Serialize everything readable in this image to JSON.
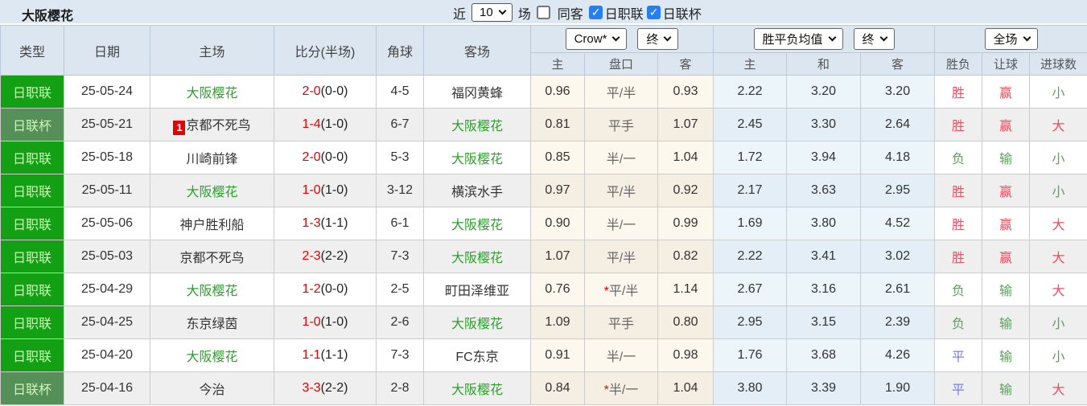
{
  "title": "大阪樱花",
  "controls": {
    "recent_label": "近",
    "recent_select": "10",
    "games_label": "场",
    "checkboxes": [
      {
        "label": "同客",
        "checked": false
      },
      {
        "label": "日职联",
        "checked": true
      },
      {
        "label": "日联杯",
        "checked": true
      }
    ]
  },
  "header": {
    "static": [
      "类型",
      "日期",
      "主场",
      "比分(半场)",
      "角球",
      "客场"
    ],
    "asian_selects": [
      "Crow*",
      "终"
    ],
    "asian_cols": [
      "主",
      "盘口",
      "客"
    ],
    "europe_selects": [
      "胜平负均值",
      "终"
    ],
    "europe_cols": [
      "主",
      "和",
      "客"
    ],
    "result_select": "全场",
    "result_cols": [
      "胜负",
      "让球",
      "进球数"
    ]
  },
  "colors": {
    "topbar_bg": "#dde8f3",
    "header_bg": "#dce6f1",
    "alt_row_bg": "#efefef",
    "cream_bg": "#fdf8ee",
    "cream_alt_bg": "#f5efe3",
    "euro_bg": "#ecf5fa",
    "euro_alt_bg": "#e4eef6",
    "league_badge": "#14a014",
    "cup_badge": "#559058",
    "badge_text": "#ccf5b8",
    "team_green": "#2e9e2e",
    "score_red": "#e60000",
    "rank_badge_red": "#e60000",
    "win_red": "#ef4c5f",
    "lose_green": "#5f9e5f",
    "draw_blue": "#7b7bf0",
    "checkbox_blue": "#267ff2"
  },
  "rows": [
    {
      "type": "日职联",
      "cup": false,
      "date": "25-05-24",
      "home": "大阪樱花",
      "home_green": true,
      "badge": "",
      "score": "2-0",
      "half": "(0-0)",
      "corner": "4-5",
      "away": "福冈黄蜂",
      "away_green": false,
      "h": "0.96",
      "hc": "平/半",
      "star": false,
      "a": "0.93",
      "eh": "2.22",
      "ed": "3.20",
      "ea": "3.20",
      "res": "胜",
      "res_c": "w",
      "let": "赢",
      "let_c": "w",
      "goal": "小",
      "goal_c": "l"
    },
    {
      "type": "日联杯",
      "cup": true,
      "date": "25-05-21",
      "home": "京都不死鸟",
      "home_green": false,
      "badge": "1",
      "score": "1-4",
      "half": "(1-0)",
      "corner": "6-7",
      "away": "大阪樱花",
      "away_green": true,
      "h": "0.81",
      "hc": "平手",
      "star": false,
      "a": "1.07",
      "eh": "2.45",
      "ed": "3.30",
      "ea": "2.64",
      "res": "胜",
      "res_c": "w",
      "let": "赢",
      "let_c": "w",
      "goal": "大",
      "goal_c": "w"
    },
    {
      "type": "日职联",
      "cup": false,
      "date": "25-05-18",
      "home": "川崎前锋",
      "home_green": false,
      "badge": "",
      "score": "2-0",
      "half": "(0-0)",
      "corner": "5-3",
      "away": "大阪樱花",
      "away_green": true,
      "h": "0.85",
      "hc": "半/一",
      "star": false,
      "a": "1.04",
      "eh": "1.72",
      "ed": "3.94",
      "ea": "4.18",
      "res": "负",
      "res_c": "l",
      "let": "输",
      "let_c": "l",
      "goal": "小",
      "goal_c": "l"
    },
    {
      "type": "日职联",
      "cup": false,
      "date": "25-05-11",
      "home": "大阪樱花",
      "home_green": true,
      "badge": "",
      "score": "1-0",
      "half": "(1-0)",
      "corner": "3-12",
      "away": "横滨水手",
      "away_green": false,
      "h": "0.97",
      "hc": "平/半",
      "star": false,
      "a": "0.92",
      "eh": "2.17",
      "ed": "3.63",
      "ea": "2.95",
      "res": "胜",
      "res_c": "w",
      "let": "赢",
      "let_c": "w",
      "goal": "小",
      "goal_c": "l"
    },
    {
      "type": "日职联",
      "cup": false,
      "date": "25-05-06",
      "home": "神户胜利船",
      "home_green": false,
      "badge": "",
      "score": "1-3",
      "half": "(1-1)",
      "corner": "6-1",
      "away": "大阪樱花",
      "away_green": true,
      "h": "0.90",
      "hc": "半/一",
      "star": false,
      "a": "0.99",
      "eh": "1.69",
      "ed": "3.80",
      "ea": "4.52",
      "res": "胜",
      "res_c": "w",
      "let": "赢",
      "let_c": "w",
      "goal": "大",
      "goal_c": "w"
    },
    {
      "type": "日职联",
      "cup": false,
      "date": "25-05-03",
      "home": "京都不死鸟",
      "home_green": false,
      "badge": "",
      "score": "2-3",
      "half": "(2-2)",
      "corner": "7-3",
      "away": "大阪樱花",
      "away_green": true,
      "h": "1.07",
      "hc": "平/半",
      "star": false,
      "a": "0.82",
      "eh": "2.22",
      "ed": "3.41",
      "ea": "3.02",
      "res": "胜",
      "res_c": "w",
      "let": "赢",
      "let_c": "w",
      "goal": "大",
      "goal_c": "w"
    },
    {
      "type": "日职联",
      "cup": false,
      "date": "25-04-29",
      "home": "大阪樱花",
      "home_green": true,
      "badge": "",
      "score": "1-2",
      "half": "(0-0)",
      "corner": "2-5",
      "away": "町田泽维亚",
      "away_green": false,
      "h": "0.76",
      "hc": "平/半",
      "star": true,
      "a": "1.14",
      "eh": "2.67",
      "ed": "3.16",
      "ea": "2.61",
      "res": "负",
      "res_c": "l",
      "let": "输",
      "let_c": "l",
      "goal": "大",
      "goal_c": "w"
    },
    {
      "type": "日职联",
      "cup": false,
      "date": "25-04-25",
      "home": "东京绿茵",
      "home_green": false,
      "badge": "",
      "score": "1-0",
      "half": "(1-0)",
      "corner": "2-6",
      "away": "大阪樱花",
      "away_green": true,
      "h": "1.09",
      "hc": "平手",
      "star": false,
      "a": "0.80",
      "eh": "2.95",
      "ed": "3.15",
      "ea": "2.39",
      "res": "负",
      "res_c": "l",
      "let": "输",
      "let_c": "l",
      "goal": "小",
      "goal_c": "l"
    },
    {
      "type": "日职联",
      "cup": false,
      "date": "25-04-20",
      "home": "大阪樱花",
      "home_green": true,
      "badge": "",
      "score": "1-1",
      "half": "(1-1)",
      "corner": "7-3",
      "away": "FC东京",
      "away_green": false,
      "h": "0.91",
      "hc": "半/一",
      "star": false,
      "a": "0.98",
      "eh": "1.76",
      "ed": "3.68",
      "ea": "4.26",
      "res": "平",
      "res_c": "d",
      "let": "输",
      "let_c": "l",
      "goal": "小",
      "goal_c": "l"
    },
    {
      "type": "日联杯",
      "cup": true,
      "date": "25-04-16",
      "home": "今治",
      "home_green": false,
      "badge": "",
      "score": "3-3",
      "half": "(2-2)",
      "corner": "2-8",
      "away": "大阪樱花",
      "away_green": true,
      "h": "0.84",
      "hc": "半/一",
      "star": true,
      "a": "1.04",
      "eh": "3.80",
      "ed": "3.39",
      "ea": "1.90",
      "res": "平",
      "res_c": "d",
      "let": "输",
      "let_c": "l",
      "goal": "大",
      "goal_c": "w"
    }
  ]
}
